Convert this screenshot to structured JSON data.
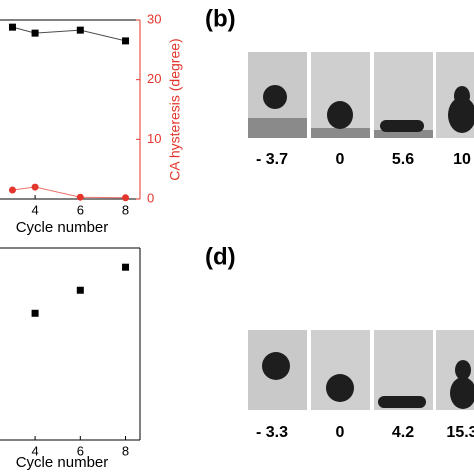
{
  "chart_data": [
    {
      "type": "line",
      "xlabel": "Cycle number",
      "y2label": "CA hysteresis (degree)",
      "x": [
        3,
        4,
        6,
        8
      ],
      "series": [
        {
          "color": "#000000",
          "marker": "square",
          "values": [
            28.8,
            27.8,
            28.3,
            26.5
          ]
        },
        {
          "color": "#e3352b",
          "marker": "circle",
          "axis": "y2",
          "values": [
            1.5,
            2.0,
            0.3,
            0.2
          ]
        }
      ],
      "xlim": [
        2.36,
        8.64
      ],
      "xticks": [
        4,
        6,
        8
      ],
      "ylim": [
        0,
        30
      ],
      "y2lim": [
        0,
        30
      ],
      "y2ticks": [
        0,
        10,
        20,
        30
      ],
      "y2color": "#e3352b"
    },
    {
      "type": "scatter",
      "xlabel": "Cycle number",
      "x": [
        4,
        6,
        8
      ],
      "series": [
        {
          "color": "#000000",
          "marker": "square",
          "values": [
            66,
            78,
            90
          ]
        }
      ],
      "xlim": [
        2.36,
        8.64
      ],
      "xticks": [
        4,
        6,
        8
      ],
      "ylim": [
        0,
        100
      ]
    }
  ],
  "image_panels": [
    {
      "label": "(b)",
      "captions": [
        "- 3.7",
        "0",
        "5.6",
        "10"
      ]
    },
    {
      "label": "(d)",
      "captions": [
        "- 3.3",
        "0",
        "4.2",
        "15.3"
      ]
    }
  ]
}
